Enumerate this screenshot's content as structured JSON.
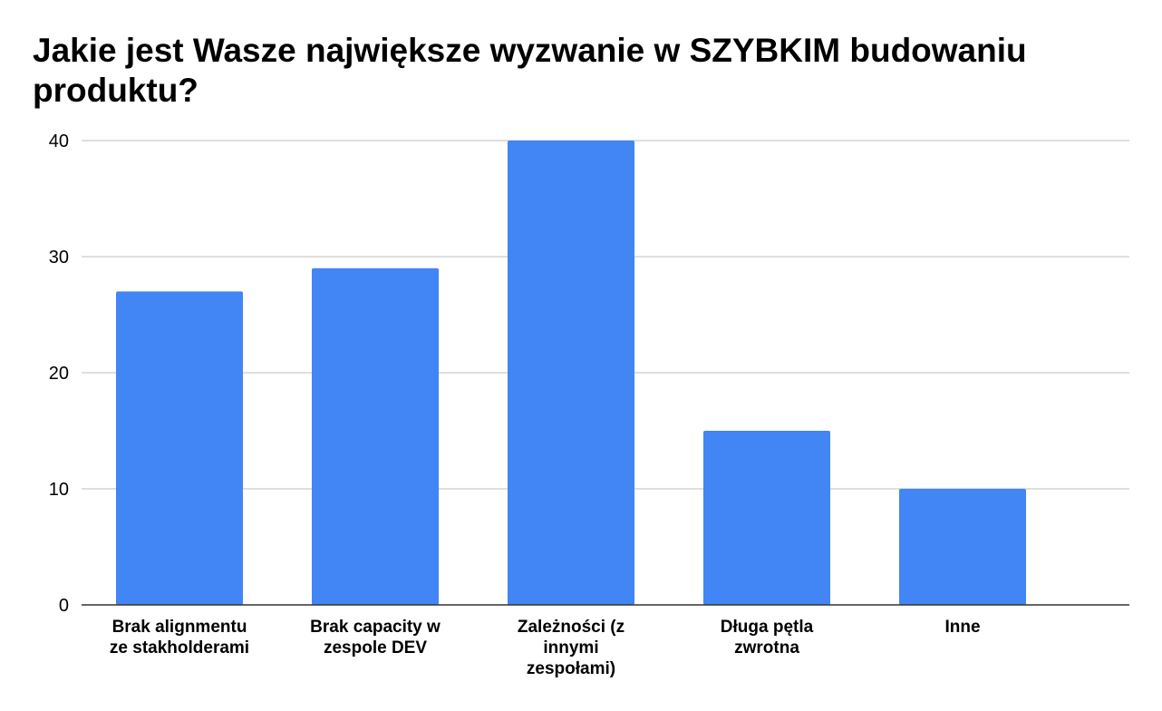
{
  "chart_data": {
    "type": "bar",
    "title": "Jakie jest Wasze największe wyzwanie w SZYBKIM budowaniu produktu?",
    "categories": [
      [
        "Brak alignmentu",
        "ze stakholderami"
      ],
      [
        "Brak capacity w",
        "zespole DEV"
      ],
      [
        "Zależności (z",
        "innymi",
        "zespołami)"
      ],
      [
        "Długa pętla",
        "zwrotna"
      ],
      [
        "Inne"
      ]
    ],
    "values": [
      27,
      29,
      40,
      15,
      10
    ],
    "xlabel": "",
    "ylabel": "",
    "ylim": [
      0,
      40
    ],
    "yticks": [
      0,
      10,
      20,
      30,
      40
    ],
    "grid": true,
    "legend": "none",
    "colors": {
      "bar": "#4285f4",
      "grid": "#cccccc",
      "axis": "#333333"
    }
  }
}
